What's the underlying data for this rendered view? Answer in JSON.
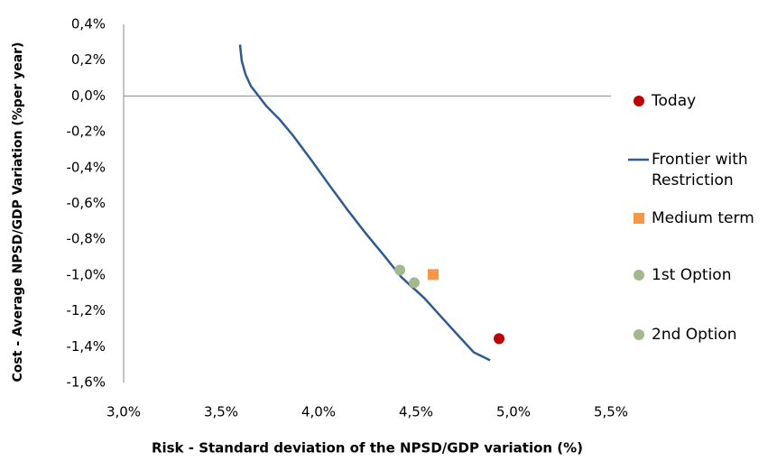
{
  "chart_data": {
    "type": "scatter",
    "x_label": "Risk - Standard deviation of the NPSD/GDP variation (%)",
    "y_label": "Cost  - Average NPSD/GDP Variation  (%per year)",
    "xlim": [
      3.0,
      5.5
    ],
    "xticks": [
      {
        "value": 3.0,
        "label": "3,0%"
      },
      {
        "value": 3.5,
        "label": "3,5%"
      },
      {
        "value": 4.0,
        "label": "4,0%"
      },
      {
        "value": 4.5,
        "label": "4,5%"
      },
      {
        "value": 5.0,
        "label": "5,0%"
      },
      {
        "value": 5.5,
        "label": "5,5%"
      }
    ],
    "ylim": [
      -1.6,
      0.4
    ],
    "yticks": [
      {
        "value": 0.4,
        "label": "0,4%"
      },
      {
        "value": 0.2,
        "label": "0,2%"
      },
      {
        "value": 0.0,
        "label": "0,0%"
      },
      {
        "value": -0.2,
        "label": "-0,2%"
      },
      {
        "value": -0.4,
        "label": "-0,4%"
      },
      {
        "value": -0.6,
        "label": "-0,6%"
      },
      {
        "value": -0.8,
        "label": "-0,8%"
      },
      {
        "value": -1.0,
        "label": "-1,0%"
      },
      {
        "value": -1.2,
        "label": "-1,2%"
      },
      {
        "value": -1.4,
        "label": "-1,4%"
      },
      {
        "value": -1.6,
        "label": "-1,6%"
      }
    ],
    "series": [
      {
        "name": "Today",
        "color": "#c00000",
        "marker": "circle",
        "x": [
          4.926
        ],
        "values": [
          -1.355
        ]
      },
      {
        "name": "Frontier with Restriction",
        "color": "#2e5a96",
        "marker": "line",
        "x": [
          3.597,
          3.606,
          3.625,
          3.653,
          3.685,
          3.731,
          3.8,
          3.87,
          3.963,
          4.056,
          4.148,
          4.241,
          4.333,
          4.426,
          4.542,
          4.634,
          4.727,
          4.796,
          4.88
        ],
        "values": [
          0.287,
          0.196,
          0.121,
          0.055,
          0.01,
          -0.055,
          -0.131,
          -0.222,
          -0.358,
          -0.499,
          -0.635,
          -0.766,
          -0.887,
          -1.013,
          -1.128,
          -1.239,
          -1.35,
          -1.431,
          -1.476
        ]
      },
      {
        "name": "Medium term",
        "color": "#f79646",
        "marker": "square",
        "x": [
          4.588
        ],
        "values": [
          -0.997
        ]
      },
      {
        "name": "1st Option",
        "color": "#a3b88c",
        "marker": "circle",
        "x": [
          4.417
        ],
        "values": [
          -0.972
        ]
      },
      {
        "name": "2nd Option",
        "color": "#a3b88c",
        "marker": "circle",
        "x": [
          4.491
        ],
        "values": [
          -1.043
        ]
      }
    ]
  }
}
